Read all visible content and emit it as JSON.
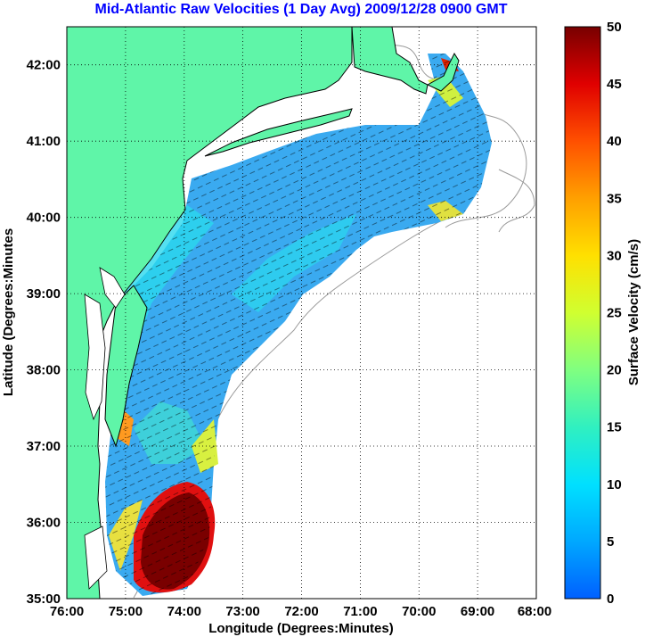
{
  "title": "Mid-Atlantic Raw Velocities (1 Day Avg) 2009/12/28 0900 GMT",
  "map": {
    "xlabel": "Longitude (Degrees:Minutes)",
    "ylabel": "Latitude (Degrees:Minutes",
    "lon_range": [
      -76,
      -68
    ],
    "lat_range": [
      35,
      42.5
    ],
    "x_ticks": [
      "76:00",
      "75:00",
      "74:00",
      "73:00",
      "72:00",
      "71:00",
      "70:00",
      "69:00",
      "68:00"
    ],
    "y_ticks": [
      "35:00",
      "36:00",
      "37:00",
      "38:00",
      "39:00",
      "40:00",
      "41:00",
      "42:00"
    ],
    "grid": true,
    "land_color": "#5ff5a8",
    "coast_color": "#000000",
    "bathymetry_color": "#9a9a9a"
  },
  "colorbar": {
    "label": "Surface Velocity (cm/s)",
    "min": 0,
    "max": 50,
    "ticks": [
      "0",
      "5",
      "10",
      "15",
      "20",
      "25",
      "30",
      "35",
      "40",
      "45",
      "50"
    ],
    "colormap": [
      "#0060ff",
      "#00a8ff",
      "#00e0ff",
      "#30f0c0",
      "#80ff80",
      "#d0ff30",
      "#ffe000",
      "#ffa000",
      "#ff5000",
      "#e00000",
      "#780000"
    ]
  }
}
